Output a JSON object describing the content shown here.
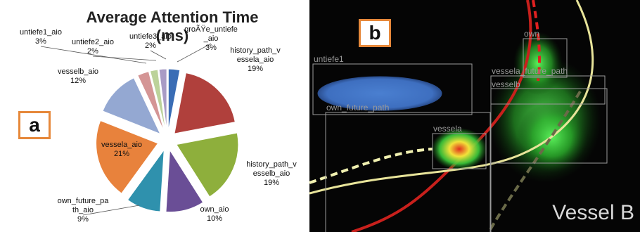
{
  "panel_a": {
    "badge": "a",
    "chart_data": {
      "type": "pie",
      "title": "Average Attention Time (ms)",
      "slices": [
        {
          "label": "groÃŸe_untiefe_aio",
          "value": 3,
          "pct": "3%",
          "color": "#3a6db5"
        },
        {
          "label": "history_path_vessela_aio",
          "value": 19,
          "pct": "19%",
          "color": "#b0403c"
        },
        {
          "label": "history_path_vesselb_aio",
          "value": 19,
          "pct": "19%",
          "color": "#8eaf3c"
        },
        {
          "label": "own_aio",
          "value": 10,
          "pct": "10%",
          "color": "#6a4e96"
        },
        {
          "label": "own_future_path_aio",
          "value": 9,
          "pct": "9%",
          "color": "#2f91ad"
        },
        {
          "label": "vessela_aio",
          "value": 21,
          "pct": "21%",
          "color": "#e8823c"
        },
        {
          "label": "vesselb_aio",
          "value": 12,
          "pct": "12%",
          "color": "#94a8d2"
        },
        {
          "label": "untiefe1_aio",
          "value": 3,
          "pct": "3%",
          "color": "#d49595"
        },
        {
          "label": "untiefe2_aio",
          "value": 2,
          "pct": "2%",
          "color": "#bcd29a"
        },
        {
          "label": "untiefe3_aio",
          "value": 2,
          "pct": "2%",
          "color": "#a99bc5"
        }
      ]
    }
  },
  "panel_b": {
    "badge": "b",
    "boxes": [
      {
        "label": "untiefe1"
      },
      {
        "label": "own_future_path"
      },
      {
        "label": "vessela"
      },
      {
        "label": "own"
      },
      {
        "label": "vessela_future_path"
      },
      {
        "label": "vesselb"
      }
    ],
    "caption": "Vessel B"
  }
}
